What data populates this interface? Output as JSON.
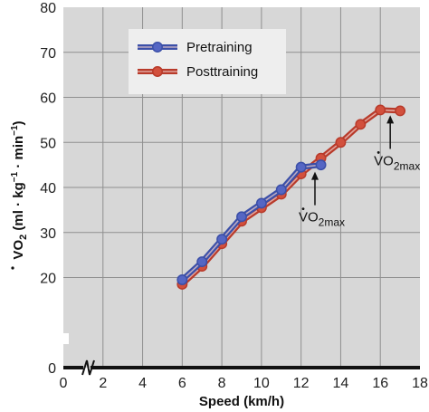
{
  "chart_data": {
    "type": "line",
    "xlabel": "Speed (km/h)",
    "ylabel_main": "VO",
    "ylabel_sub": "2",
    "ylabel_units": " (ml · kg",
    "ylabel_exp1": "−1",
    "ylabel_mid": " · min",
    "ylabel_exp2": "−1",
    "ylabel_close": ")",
    "xlim": [
      0,
      18
    ],
    "ylim": [
      0,
      80
    ],
    "xticks": [
      "0",
      "2",
      "4",
      "6",
      "8",
      "10",
      "12",
      "14",
      "16",
      "18"
    ],
    "yticks": [
      "0",
      "20",
      "30",
      "40",
      "50",
      "60",
      "70",
      "80"
    ],
    "grid": true,
    "legend_position": "top-left",
    "series": [
      {
        "name": "Pretraining",
        "color": "#3b4fa8",
        "fill": "#5566c4",
        "x": [
          6,
          7,
          8,
          9,
          10,
          11,
          12,
          13
        ],
        "y": [
          19.5,
          23.5,
          28.5,
          33.5,
          36.5,
          39.5,
          44.5,
          45
        ]
      },
      {
        "name": "Posttraining",
        "color": "#b83a2a",
        "fill": "#d2503d",
        "x": [
          6,
          7,
          8,
          9,
          10,
          11,
          12,
          13,
          14,
          15,
          16,
          17
        ],
        "y": [
          18.5,
          22.5,
          27.5,
          32.5,
          35.5,
          38.5,
          43,
          46.5,
          50,
          54,
          57.2,
          57
        ]
      }
    ],
    "annotations": [
      {
        "main": "VO",
        "sub": "2max",
        "target_x": 12.7,
        "target_y": 44.5
      },
      {
        "main": "VO",
        "sub": "2max",
        "target_x": 16.5,
        "target_y": 57
      }
    ],
    "axis_break": true
  }
}
